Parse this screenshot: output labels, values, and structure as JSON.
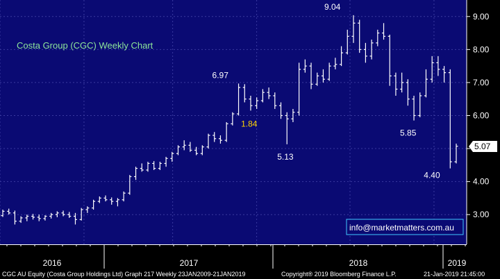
{
  "chart_data": {
    "type": "ohlc",
    "title": "Costa Group (CGC) Weekly Chart",
    "xlabel": "",
    "ylabel": "",
    "ylim": [
      2.1,
      9.5
    ],
    "y_ticks": [
      "3.00",
      "4.00",
      "5.00",
      "6.00",
      "7.00",
      "8.00",
      "9.00"
    ],
    "x_labels": [
      "2016",
      "2017",
      "2018",
      "2019"
    ],
    "last_price": "5.07",
    "annotations": [
      {
        "text": "6.97",
        "value": 6.97,
        "color": "#ffffff"
      },
      {
        "text": "9.04",
        "value": 9.04,
        "color": "#ffffff"
      },
      {
        "text": "5.13",
        "value": 5.13,
        "color": "#ffffff"
      },
      {
        "text": "1.84",
        "value": 1.84,
        "color": "#ffd400"
      },
      {
        "text": "5.85",
        "value": 5.85,
        "color": "#ffffff"
      },
      {
        "text": "4.40",
        "value": 4.4,
        "color": "#ffffff"
      }
    ],
    "series": [
      {
        "values": [
          [
            2.97,
            3.15,
            2.93,
            3.1
          ],
          [
            3.1,
            3.18,
            3.0,
            3.05
          ],
          [
            3.05,
            3.12,
            2.7,
            2.8
          ],
          [
            2.8,
            2.95,
            2.75,
            2.9
          ],
          [
            2.9,
            3.0,
            2.8,
            2.95
          ],
          [
            2.95,
            3.02,
            2.85,
            2.92
          ],
          [
            2.92,
            3.0,
            2.8,
            2.88
          ],
          [
            2.88,
            2.98,
            2.82,
            2.95
          ],
          [
            2.95,
            3.05,
            2.88,
            3.0
          ],
          [
            3.0,
            3.1,
            2.92,
            3.05
          ],
          [
            3.05,
            3.12,
            2.95,
            3.0
          ],
          [
            3.0,
            3.08,
            2.9,
            2.95
          ],
          [
            2.95,
            3.05,
            2.7,
            2.85
          ],
          [
            2.85,
            3.2,
            2.82,
            3.15
          ],
          [
            3.15,
            3.25,
            3.05,
            3.2
          ],
          [
            3.2,
            3.45,
            3.15,
            3.4
          ],
          [
            3.4,
            3.55,
            3.35,
            3.5
          ],
          [
            3.5,
            3.58,
            3.4,
            3.45
          ],
          [
            3.45,
            3.52,
            3.3,
            3.4
          ],
          [
            3.4,
            3.5,
            3.25,
            3.45
          ],
          [
            3.45,
            3.7,
            3.4,
            3.65
          ],
          [
            3.65,
            4.2,
            3.6,
            4.15
          ],
          [
            4.15,
            4.45,
            4.05,
            4.4
          ],
          [
            4.4,
            4.55,
            4.3,
            4.35
          ],
          [
            4.35,
            4.6,
            4.3,
            4.55
          ],
          [
            4.55,
            4.62,
            4.35,
            4.4
          ],
          [
            4.4,
            4.6,
            4.35,
            4.55
          ],
          [
            4.55,
            4.75,
            4.45,
            4.7
          ],
          [
            4.7,
            4.9,
            4.6,
            4.85
          ],
          [
            4.85,
            5.1,
            4.8,
            5.05
          ],
          [
            5.05,
            5.25,
            4.95,
            5.1
          ],
          [
            5.1,
            5.2,
            4.9,
            4.95
          ],
          [
            4.95,
            5.05,
            4.8,
            4.85
          ],
          [
            4.85,
            5.1,
            4.8,
            5.05
          ],
          [
            5.05,
            5.45,
            5.0,
            5.4
          ],
          [
            5.4,
            5.5,
            5.2,
            5.3
          ],
          [
            5.3,
            5.4,
            5.15,
            5.25
          ],
          [
            5.25,
            5.8,
            5.2,
            5.75
          ],
          [
            5.75,
            6.1,
            5.7,
            6.05
          ],
          [
            6.05,
            6.97,
            6.0,
            6.85
          ],
          [
            6.85,
            6.95,
            6.4,
            6.5
          ],
          [
            6.5,
            6.6,
            6.15,
            6.3
          ],
          [
            6.3,
            6.55,
            6.2,
            6.45
          ],
          [
            6.45,
            6.8,
            6.4,
            6.7
          ],
          [
            6.7,
            6.85,
            6.5,
            6.6
          ],
          [
            6.6,
            6.7,
            6.2,
            6.3
          ],
          [
            6.3,
            6.4,
            5.9,
            6.0
          ],
          [
            6.0,
            6.1,
            5.13,
            5.9
          ],
          [
            5.9,
            6.2,
            5.8,
            6.1
          ],
          [
            6.1,
            7.6,
            6.0,
            7.4
          ],
          [
            7.4,
            7.7,
            7.3,
            7.5
          ],
          [
            7.5,
            7.6,
            6.8,
            6.95
          ],
          [
            6.95,
            7.3,
            6.9,
            7.2
          ],
          [
            7.2,
            7.4,
            7.0,
            7.1
          ],
          [
            7.1,
            7.6,
            7.05,
            7.5
          ],
          [
            7.5,
            7.75,
            7.4,
            7.55
          ],
          [
            7.55,
            8.1,
            7.5,
            7.9
          ],
          [
            7.9,
            8.6,
            7.85,
            8.4
          ],
          [
            8.4,
            9.04,
            8.2,
            8.8
          ],
          [
            8.8,
            8.9,
            7.9,
            8.0
          ],
          [
            8.0,
            8.2,
            7.6,
            7.8
          ],
          [
            7.8,
            8.3,
            7.7,
            8.2
          ],
          [
            8.2,
            8.6,
            8.1,
            8.5
          ],
          [
            8.5,
            8.8,
            8.3,
            8.4
          ],
          [
            8.4,
            8.45,
            6.9,
            7.2
          ],
          [
            7.2,
            7.3,
            6.6,
            6.8
          ],
          [
            6.8,
            7.3,
            6.7,
            7.0
          ],
          [
            7.0,
            7.1,
            6.3,
            6.5
          ],
          [
            6.5,
            6.6,
            5.85,
            6.0
          ],
          [
            6.0,
            6.7,
            5.95,
            6.6
          ],
          [
            6.6,
            7.4,
            6.55,
            7.1
          ],
          [
            7.1,
            7.8,
            7.0,
            7.6
          ],
          [
            7.6,
            7.8,
            7.2,
            7.4
          ],
          [
            7.4,
            7.5,
            7.0,
            7.3
          ],
          [
            7.3,
            7.4,
            4.4,
            4.6
          ],
          [
            4.6,
            5.15,
            4.55,
            5.07
          ]
        ]
      }
    ]
  },
  "watermark": "info@marketmatters.com.au",
  "footer": {
    "left": "CGC AU Equity (Costa Group Holdings Ltd) Graph 217  Weekly 23JAN2009-21JAN2019",
    "center": "Copyright® 2019 Bloomberg Finance L.P.",
    "right": "21-Jan-2019 21:45:00"
  },
  "colors": {
    "plot_bg": "#0a0a73",
    "grid": "#3a3aa0",
    "bar": "#ffffff",
    "title": "#8ee69b",
    "highlight": "#ffd400"
  }
}
